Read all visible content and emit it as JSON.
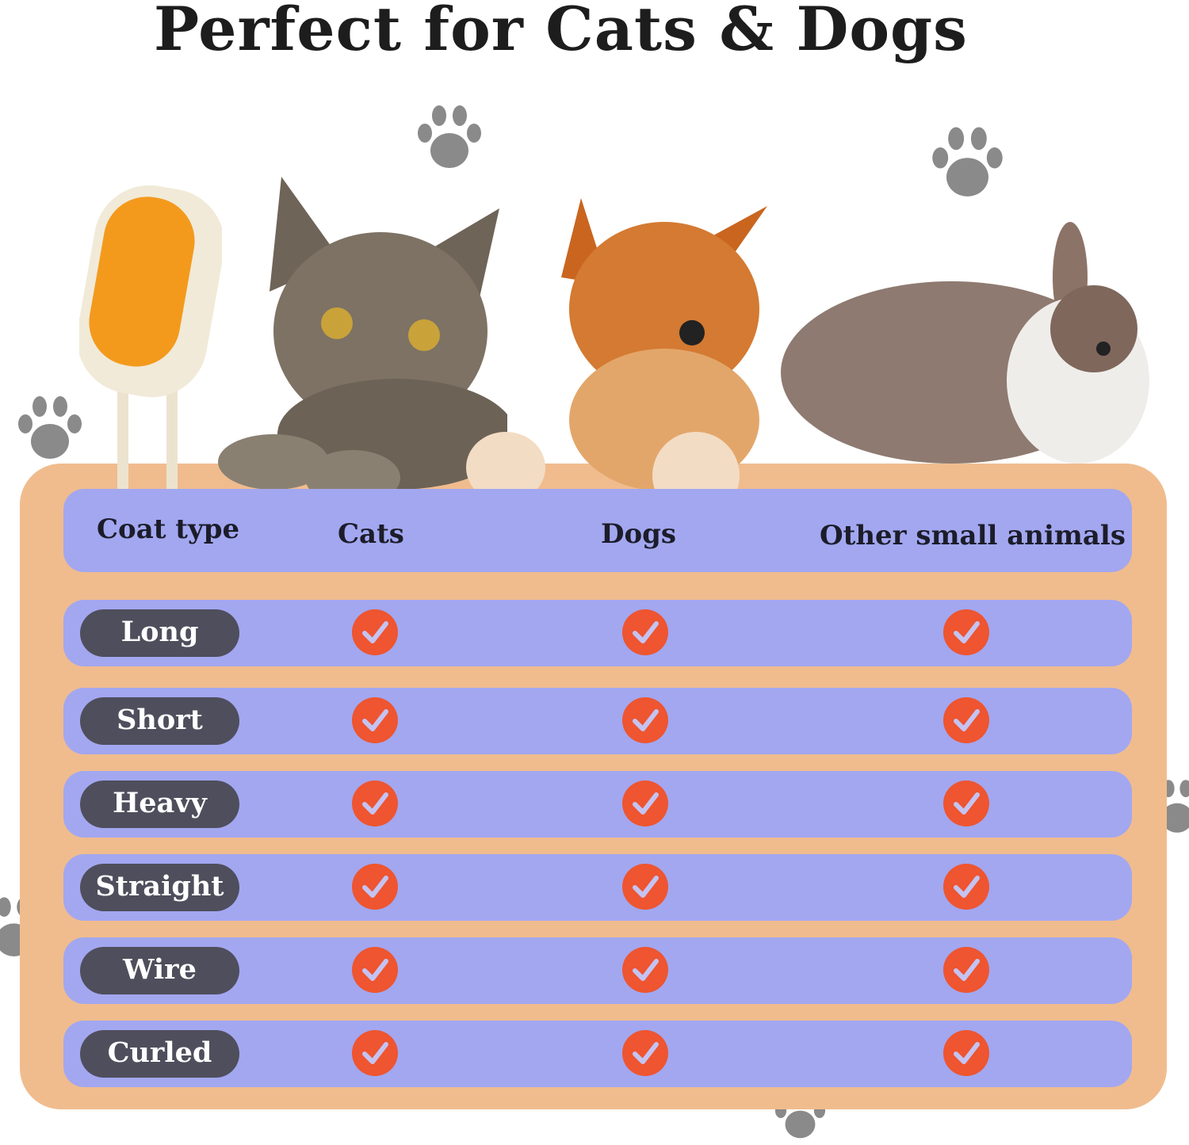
{
  "title": "Perfect for Cats & Dogs",
  "table": {
    "headers": [
      "Coat type",
      "Cats",
      "Dogs",
      "Other small animals"
    ],
    "rows": [
      {
        "label": "Long",
        "cats": true,
        "dogs": true,
        "other": true
      },
      {
        "label": "Short",
        "cats": true,
        "dogs": true,
        "other": true
      },
      {
        "label": "Heavy",
        "cats": true,
        "dogs": true,
        "other": true
      },
      {
        "label": "Straight",
        "cats": true,
        "dogs": true,
        "other": true
      },
      {
        "label": "Wire",
        "cats": true,
        "dogs": true,
        "other": true
      },
      {
        "label": "Curled",
        "cats": true,
        "dogs": true,
        "other": true
      }
    ]
  },
  "colors": {
    "panel": "#f0bc8e",
    "band": "#a2a7f0",
    "pill": "#4f4e5c",
    "check": "#ee5530",
    "paw": "#8a8a8a"
  },
  "icons": [
    "check-circle-icon",
    "paw-print-icon"
  ]
}
